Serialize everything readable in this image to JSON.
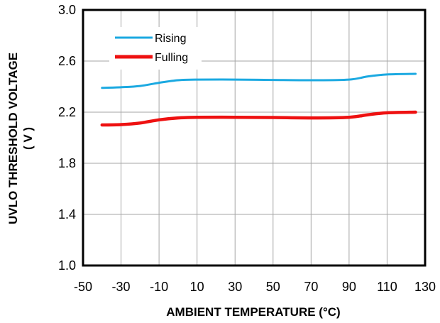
{
  "chart_data": {
    "type": "line",
    "xlabel": "AMBIENT  TEMPERATURE  (°C)",
    "ylabel_line1": "UVLO THRESHOLD  VOLTAGE",
    "ylabel_line2": "( V )",
    "xlim": [
      -50,
      130
    ],
    "ylim": [
      1.0,
      3.0
    ],
    "xticks": [
      -50,
      -30,
      -10,
      10,
      30,
      50,
      70,
      90,
      110,
      130
    ],
    "yticks": [
      1.0,
      1.4,
      1.8,
      2.2,
      2.6,
      3.0
    ],
    "grid": true,
    "legend_position": "top-left",
    "series": [
      {
        "name": "Rising",
        "color": "#1BA9E1",
        "x": [
          -40,
          -30,
          -20,
          -10,
          0,
          10,
          30,
          50,
          70,
          90,
          100,
          110,
          125
        ],
        "y": [
          2.39,
          2.395,
          2.405,
          2.43,
          2.45,
          2.455,
          2.455,
          2.452,
          2.45,
          2.455,
          2.48,
          2.495,
          2.5
        ]
      },
      {
        "name": "Fulling",
        "color": "#EE1111",
        "x": [
          -40,
          -30,
          -20,
          -10,
          0,
          10,
          30,
          50,
          70,
          90,
          100,
          110,
          125
        ],
        "y": [
          2.1,
          2.103,
          2.115,
          2.14,
          2.155,
          2.16,
          2.16,
          2.158,
          2.155,
          2.16,
          2.18,
          2.195,
          2.2
        ]
      }
    ]
  }
}
